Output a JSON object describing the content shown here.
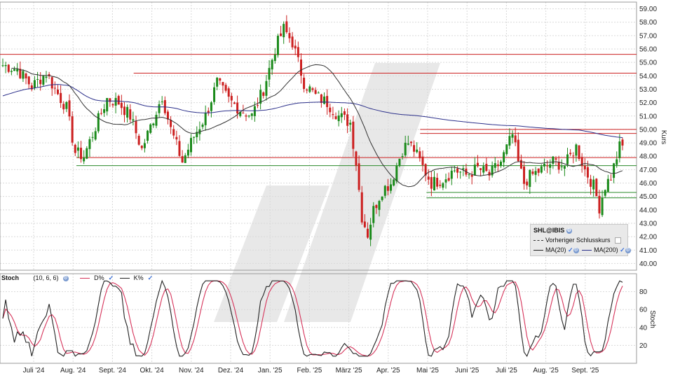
{
  "chart_data": [
    {
      "type": "candlestick",
      "title": "",
      "ylabel": "Kurs",
      "ylim": [
        39.5,
        59.5
      ],
      "y_ticks": [
        "59.00",
        "58.00",
        "57.00",
        "56.00",
        "55.00",
        "54.00",
        "53.00",
        "52.00",
        "51.00",
        "50.00",
        "49.00",
        "48.00",
        "47.00",
        "46.00",
        "45.00",
        "44.00",
        "43.00",
        "42.00",
        "41.00",
        "40.00"
      ],
      "x_ticks": [
        "Juli '24",
        "Aug. '24",
        "Sept. '24",
        "Okt. '24",
        "Nov. '24",
        "Dez. '24",
        "Jan. '25",
        "Feb. '25",
        "März '25",
        "Apr. '25",
        "Mai '25",
        "Juni '25",
        "Juli '25",
        "Aug. '25",
        "Sept. '25"
      ],
      "price_path": [
        [
          0,
          54.8
        ],
        [
          5,
          54.5
        ],
        [
          10,
          53.2
        ],
        [
          15,
          54.2
        ],
        [
          18,
          53.0
        ],
        [
          22,
          51.6
        ],
        [
          25,
          48.3
        ],
        [
          28,
          48.0
        ],
        [
          32,
          50.2
        ],
        [
          36,
          52.3
        ],
        [
          40,
          52.0
        ],
        [
          44,
          51.0
        ],
        [
          48,
          48.5
        ],
        [
          52,
          50.8
        ],
        [
          55,
          52.5
        ],
        [
          58,
          50.0
        ],
        [
          62,
          47.6
        ],
        [
          66,
          49.5
        ],
        [
          70,
          51.0
        ],
        [
          74,
          53.5
        ],
        [
          78,
          52.2
        ],
        [
          82,
          51.5
        ],
        [
          86,
          51.0
        ],
        [
          90,
          53.0
        ],
        [
          94,
          56.0
        ],
        [
          97,
          57.5
        ],
        [
          100,
          56.5
        ],
        [
          104,
          53.5
        ],
        [
          108,
          52.5
        ],
        [
          112,
          52.0
        ],
        [
          116,
          51.0
        ],
        [
          120,
          50.5
        ],
        [
          122,
          47.5
        ],
        [
          124,
          43.5
        ],
        [
          126,
          42.2
        ],
        [
          128,
          44.0
        ],
        [
          131,
          45.5
        ],
        [
          134,
          46.0
        ],
        [
          136,
          47.3
        ],
        [
          138,
          48.5
        ],
        [
          140,
          49.0
        ],
        [
          142,
          48.5
        ],
        [
          145,
          47.2
        ],
        [
          148,
          46.0
        ],
        [
          152,
          46.3
        ],
        [
          156,
          47.0
        ],
        [
          160,
          46.6
        ],
        [
          164,
          47.1
        ],
        [
          168,
          46.6
        ],
        [
          172,
          47.6
        ],
        [
          176,
          49.6
        ],
        [
          178,
          47.5
        ],
        [
          180,
          46.0
        ],
        [
          182,
          46.5
        ],
        [
          186,
          47.0
        ],
        [
          190,
          47.6
        ],
        [
          194,
          47.3
        ],
        [
          198,
          48.7
        ],
        [
          201,
          47.0
        ],
        [
          204,
          45.8
        ],
        [
          206,
          44.2
        ],
        [
          208,
          45.8
        ],
        [
          210,
          46.5
        ],
        [
          213,
          48.7
        ]
      ],
      "red_levels": [
        {
          "value": 55.6,
          "from": 0,
          "to": 1
        },
        {
          "value": 54.2,
          "from": 0.21,
          "to": 1
        },
        {
          "value": 50.0,
          "from": 0.66,
          "to": 1
        },
        {
          "value": 49.7,
          "from": 0.66,
          "to": 1
        },
        {
          "value": 47.9,
          "from": 0.12,
          "to": 1
        }
      ],
      "green_levels": [
        {
          "value": 47.3,
          "from": 0.12,
          "to": 1
        },
        {
          "value": 45.3,
          "from": 0.67,
          "to": 1
        },
        {
          "value": 44.9,
          "from": 0.67,
          "to": 1
        }
      ],
      "legend": {
        "symbol": "SHL@IBIS",
        "prev_close_label": "Vorheriger Schlusskurs",
        "ma20_label": "MA(20)",
        "ma200_label": "MA(200)"
      },
      "colors": {
        "up": "#1a8a1a",
        "down": "#cc1f1f",
        "ma20": "#222222",
        "ma200": "#2b2f8a",
        "red_line": "#cc2222",
        "green_line": "#2a8a2a",
        "watermark": "#e6e6e6"
      }
    },
    {
      "type": "line",
      "title": "Stoch",
      "ylabel": "Stoch",
      "ylim": [
        0,
        100
      ],
      "y_ticks": [
        "80",
        "60",
        "40",
        "20"
      ],
      "params": "(10, 6, 6)",
      "series": [
        {
          "name": "D%",
          "color": "#d6335a"
        },
        {
          "name": "K%",
          "color": "#222222"
        }
      ]
    }
  ]
}
